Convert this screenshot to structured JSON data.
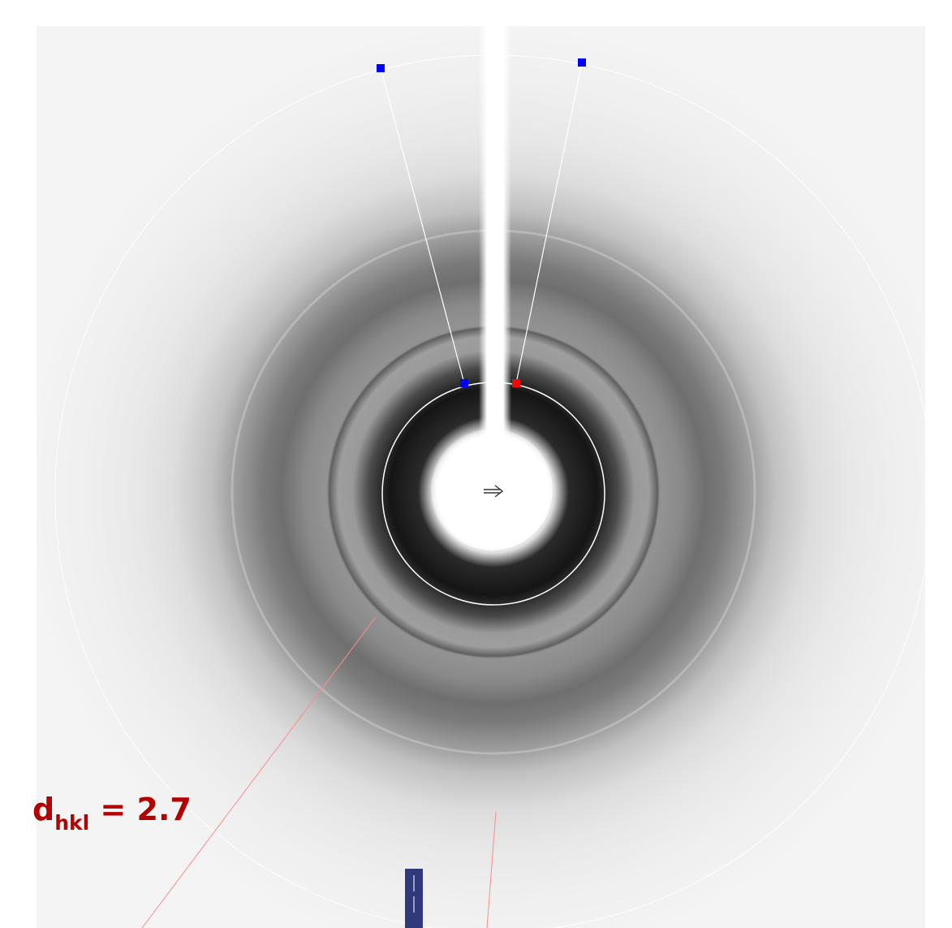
{
  "image": {
    "kind": "powder X-ray diffraction pattern",
    "background": "#f2f2f2",
    "ring_color": "#ffffff",
    "overlay_line_color": "#ffffff",
    "marker_color_primary": "#0000ff",
    "marker_color_selected": "#ff0000",
    "guide_line_color": "#ff7a7a",
    "beamstop_color": "#ffffff",
    "ruler_color": "#2e3a7a"
  },
  "annotation": {
    "symbol": "d",
    "subscript": "hkl",
    "equals_value": " = 2.7",
    "color": "#b30000"
  },
  "markers": [
    {
      "name": "outer-left-handle",
      "color": "#0000ff"
    },
    {
      "name": "outer-right-handle",
      "color": "#0000ff"
    },
    {
      "name": "inner-left-handle",
      "color": "#0000ff"
    },
    {
      "name": "inner-right-handle",
      "color": "#ff0000"
    }
  ],
  "icons": {
    "center": "arrow-right-icon"
  }
}
